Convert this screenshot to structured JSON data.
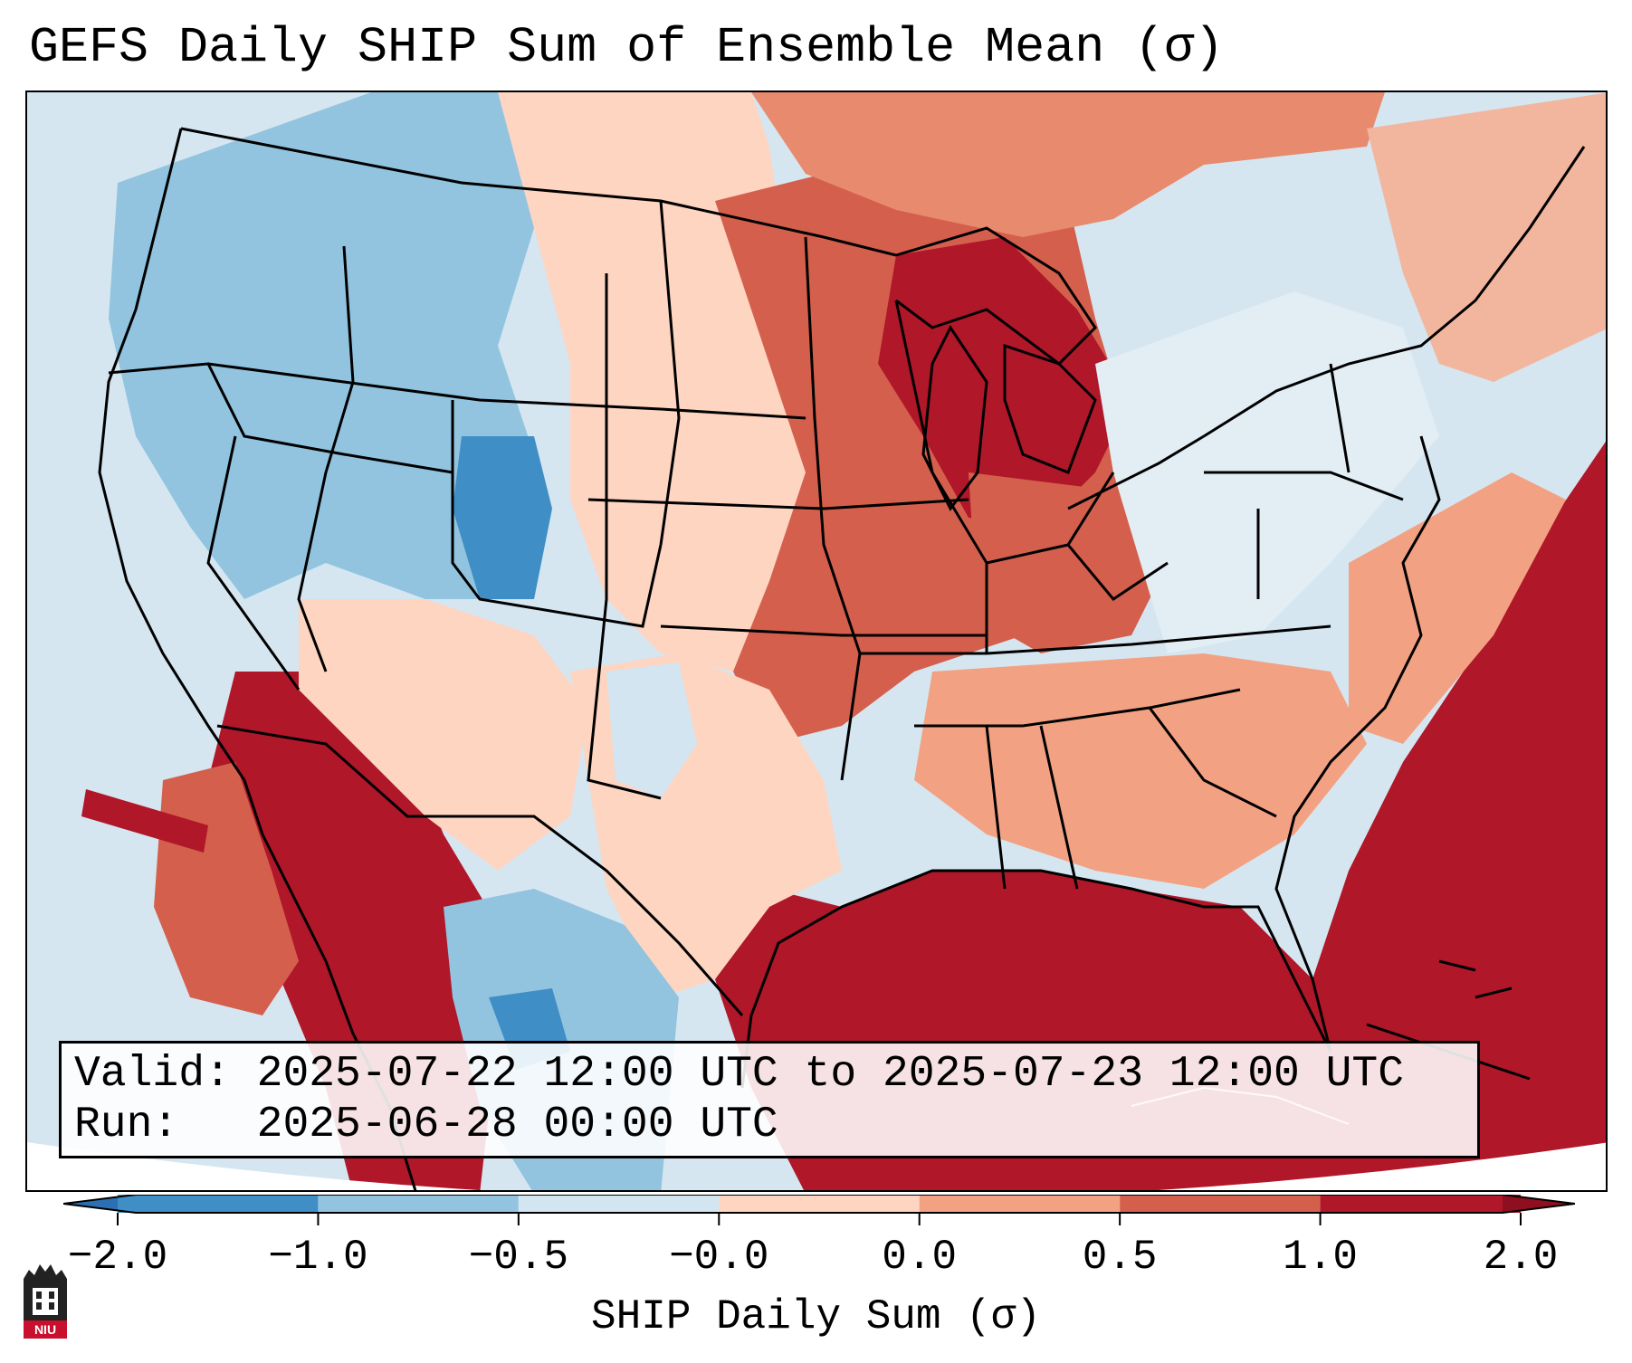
{
  "title": "GEFS Daily SHIP Sum of Ensemble Mean (σ)",
  "valid_line": "Valid: 2025-07-22 12:00 UTC to 2025-07-23 12:00 UTC",
  "run_line": "Run:   2025-06-28 00:00 UTC",
  "colorbar": {
    "label": "SHIP Daily Sum (σ)",
    "ticks": [
      "−2.0",
      "−1.0",
      "−0.5",
      "−0.0",
      "0.0",
      "0.5",
      "1.0",
      "2.0"
    ],
    "colors": [
      "#3f8ec5",
      "#92c4df",
      "#d3e5f0",
      "#f7f7f7",
      "#fdd5c1",
      "#f2a283",
      "#d45f4d",
      "#b01729"
    ],
    "extend": "both"
  },
  "logo_text": "NIU"
}
